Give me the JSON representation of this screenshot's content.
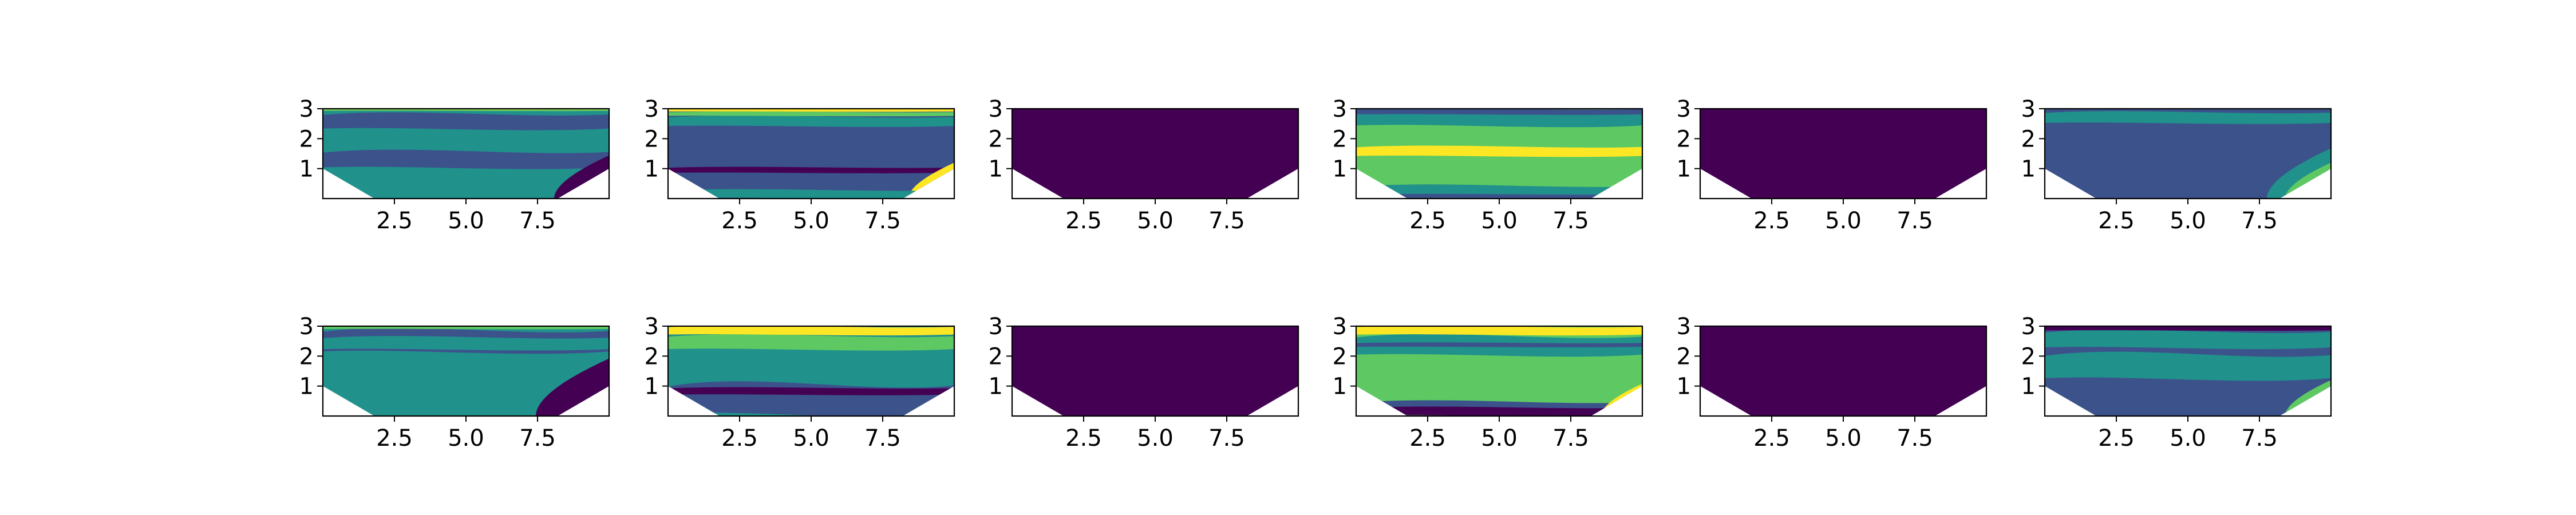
{
  "chart_data": {
    "type": "contour",
    "layout": {
      "rows": 2,
      "cols": 6
    },
    "shared_axes": {
      "xlim": [
        0,
        10
      ],
      "ylim": [
        0,
        3
      ],
      "xticks": [
        2.5,
        5.0,
        7.5
      ],
      "xtick_labels": [
        "2.5",
        "5.0",
        "7.5"
      ],
      "yticks": [
        1,
        2,
        3
      ],
      "ytick_labels": [
        "1",
        "2",
        "3"
      ],
      "grid": false,
      "domain_outline": [
        [
          0,
          1.0
        ],
        [
          1.8,
          0
        ],
        [
          8.2,
          0
        ],
        [
          10,
          1.0
        ]
      ]
    },
    "colors": {
      "viridis": [
        "#440154",
        "#3b528b",
        "#21918c",
        "#5ec962",
        "#fde725"
      ],
      "c_dark": "#440154",
      "c_indigo": "#3b528b",
      "c_teal": "#21918c",
      "c_green": "#5ec962",
      "c_yellow": "#fde725",
      "axes_frame": "#000000",
      "background": "#ffffff"
    },
    "panels": [
      {
        "row": 1,
        "col": 1,
        "field": "mostly-teal",
        "levels": [
          {
            "color": "#21918c",
            "region": "domain"
          },
          {
            "color": "#3b528b",
            "region": "band",
            "y0": 1.0,
            "y1": 1.6
          },
          {
            "color": "#3b528b",
            "region": "band",
            "y0": 2.3,
            "y1": 2.85
          },
          {
            "color": "#440154",
            "region": "corner-right",
            "size": 1.2
          },
          {
            "color": "#5ec962",
            "region": "band",
            "y0": 2.92,
            "y1": 3.0
          },
          {
            "color": "#fde725",
            "region": "band",
            "y0": 2.97,
            "y1": 3.0
          }
        ]
      },
      {
        "row": 1,
        "col": 2,
        "field": "indigo-with-yellow-top",
        "levels": [
          {
            "color": "#3b528b",
            "region": "domain"
          },
          {
            "color": "#21918c",
            "region": "band",
            "y0": 2.4,
            "y1": 2.75
          },
          {
            "color": "#5ec962",
            "region": "band",
            "y0": 2.75,
            "y1": 2.9
          },
          {
            "color": "#fde725",
            "region": "band",
            "y0": 2.9,
            "y1": 3.0
          },
          {
            "color": "#440154",
            "region": "band",
            "y0": 0.85,
            "y1": 1.05
          },
          {
            "color": "#fde725",
            "region": "corner-right",
            "size": 1.0
          },
          {
            "color": "#21918c",
            "region": "band",
            "y0": 0.0,
            "y1": 0.3
          }
        ]
      },
      {
        "row": 1,
        "col": 3,
        "field": "uniform",
        "levels": [
          {
            "color": "#440154",
            "region": "domain"
          }
        ]
      },
      {
        "row": 1,
        "col": 4,
        "field": "green-with-teal-top",
        "levels": [
          {
            "color": "#5ec962",
            "region": "domain"
          },
          {
            "color": "#21918c",
            "region": "band",
            "y0": 2.4,
            "y1": 3.0
          },
          {
            "color": "#3b528b",
            "region": "band",
            "y0": 2.8,
            "y1": 3.0
          },
          {
            "color": "#fde725",
            "region": "band",
            "y0": 1.4,
            "y1": 1.75
          },
          {
            "color": "#21918c",
            "region": "band",
            "y0": 0.0,
            "y1": 0.45
          },
          {
            "color": "#3b528b",
            "region": "band",
            "y0": 0.0,
            "y1": 0.15
          }
        ]
      },
      {
        "row": 1,
        "col": 5,
        "field": "uniform",
        "levels": [
          {
            "color": "#440154",
            "region": "domain"
          }
        ]
      },
      {
        "row": 1,
        "col": 6,
        "field": "indigo-with-yellow-corner",
        "levels": [
          {
            "color": "#3b528b",
            "region": "domain"
          },
          {
            "color": "#21918c",
            "region": "band",
            "y0": 2.5,
            "y1": 2.9
          },
          {
            "color": "#21918c",
            "region": "corner-right",
            "size": 1.4
          },
          {
            "color": "#5ec962",
            "region": "corner-right",
            "size": 1.0
          },
          {
            "color": "#fde725",
            "region": "corner-right",
            "size": 0.7
          }
        ]
      },
      {
        "row": 2,
        "col": 1,
        "field": "teal-banded",
        "levels": [
          {
            "color": "#21918c",
            "region": "domain"
          },
          {
            "color": "#3b528b",
            "region": "band",
            "y0": 2.1,
            "y1": 2.9
          },
          {
            "color": "#21918c",
            "region": "band",
            "y0": 2.2,
            "y1": 2.65
          },
          {
            "color": "#440154",
            "region": "corner-right",
            "size": 1.6
          },
          {
            "color": "#5ec962",
            "region": "band",
            "y0": 2.9,
            "y1": 3.0
          },
          {
            "color": "#fde725",
            "region": "corner-left",
            "size": 0.5
          }
        ]
      },
      {
        "row": 2,
        "col": 2,
        "field": "indigo-teal-yellow",
        "levels": [
          {
            "color": "#21918c",
            "region": "domain"
          },
          {
            "color": "#3b528b",
            "region": "band",
            "y0": 0.0,
            "y1": 1.1
          },
          {
            "color": "#440154",
            "region": "band",
            "y0": 0.7,
            "y1": 0.95
          },
          {
            "color": "#5ec962",
            "region": "band",
            "y0": 2.2,
            "y1": 2.7
          },
          {
            "color": "#fde725",
            "region": "band",
            "y0": 2.7,
            "y1": 3.0
          },
          {
            "color": "#5ec962",
            "region": "corner-right",
            "size": 0.8
          }
        ]
      },
      {
        "row": 2,
        "col": 3,
        "field": "uniform",
        "levels": [
          {
            "color": "#440154",
            "region": "domain"
          }
        ]
      },
      {
        "row": 2,
        "col": 4,
        "field": "green-dark-bottom",
        "levels": [
          {
            "color": "#5ec962",
            "region": "domain"
          },
          {
            "color": "#21918c",
            "region": "band",
            "y0": 2.0,
            "y1": 2.7
          },
          {
            "color": "#3b528b",
            "region": "band",
            "y0": 2.3,
            "y1": 2.45
          },
          {
            "color": "#fde725",
            "region": "band",
            "y0": 2.7,
            "y1": 3.0
          },
          {
            "color": "#3b528b",
            "region": "band",
            "y0": 0.0,
            "y1": 0.5
          },
          {
            "color": "#440154",
            "region": "band",
            "y0": 0.0,
            "y1": 0.3
          },
          {
            "color": "#fde725",
            "region": "corner-right",
            "size": 0.9
          }
        ]
      },
      {
        "row": 2,
        "col": 5,
        "field": "uniform",
        "levels": [
          {
            "color": "#440154",
            "region": "domain"
          }
        ]
      },
      {
        "row": 2,
        "col": 6,
        "field": "violet-banded",
        "levels": [
          {
            "color": "#3b528b",
            "region": "domain"
          },
          {
            "color": "#21918c",
            "region": "band",
            "y0": 1.2,
            "y1": 2.1
          },
          {
            "color": "#21918c",
            "region": "band",
            "y0": 2.25,
            "y1": 2.85
          },
          {
            "color": "#440154",
            "region": "band",
            "y0": 2.85,
            "y1": 3.0
          },
          {
            "color": "#5ec962",
            "region": "corner-right",
            "size": 1.0
          },
          {
            "color": "#fde725",
            "region": "corner-right",
            "size": 0.7
          },
          {
            "color": "#5ec962",
            "region": "corner-left",
            "size": 0.5
          }
        ]
      }
    ]
  }
}
